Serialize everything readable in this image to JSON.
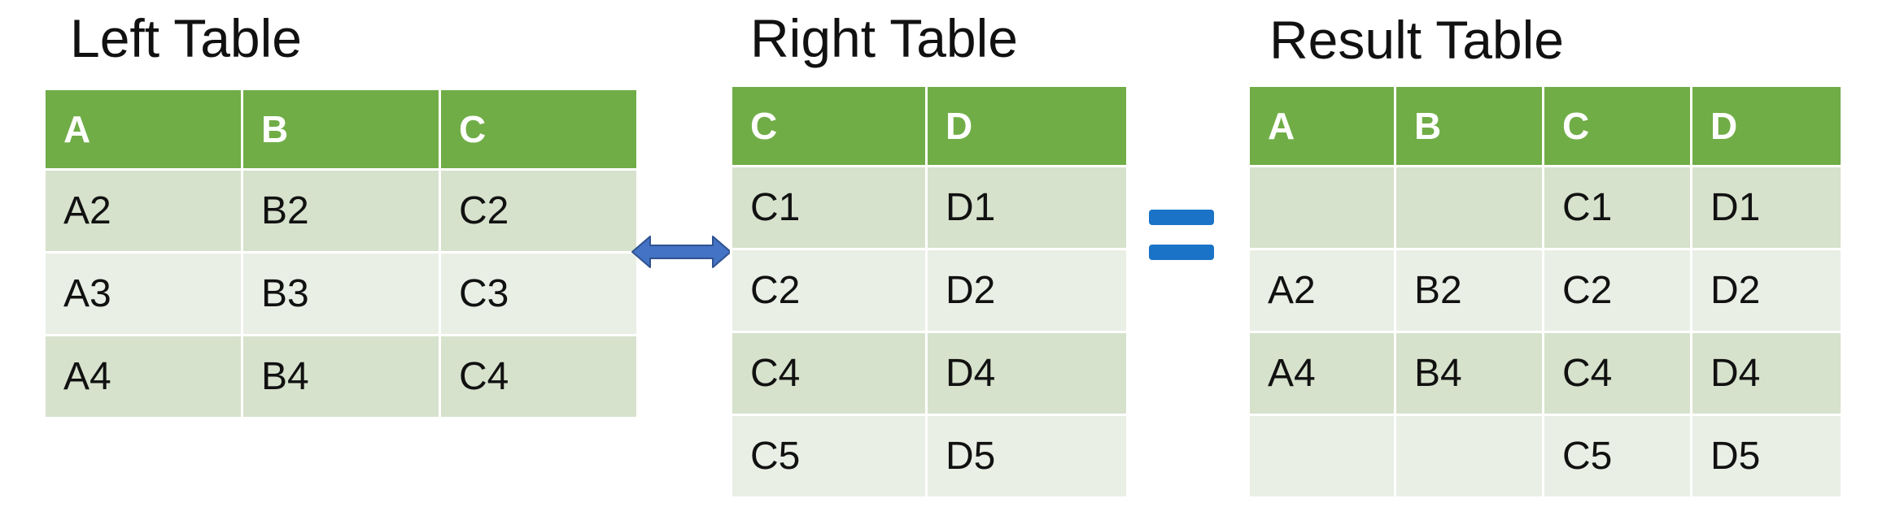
{
  "left_table": {
    "title": "Left Table",
    "columns": [
      "A",
      "B",
      "C"
    ],
    "rows": [
      [
        "A2",
        "B2",
        "C2"
      ],
      [
        "A3",
        "B3",
        "C3"
      ],
      [
        "A4",
        "B4",
        "C4"
      ]
    ]
  },
  "right_table": {
    "title": "Right Table",
    "columns": [
      "C",
      "D"
    ],
    "rows": [
      [
        "C1",
        "D1"
      ],
      [
        "C2",
        "D2"
      ],
      [
        "C4",
        "D4"
      ],
      [
        "C5",
        "D5"
      ]
    ]
  },
  "result_table": {
    "title": "Result Table",
    "columns": [
      "A",
      "B",
      "C",
      "D"
    ],
    "rows": [
      [
        "",
        "",
        "C1",
        "D1"
      ],
      [
        "A2",
        "B2",
        "C2",
        "D2"
      ],
      [
        "A4",
        "B4",
        "C4",
        "D4"
      ],
      [
        "",
        "",
        "C5",
        "D5"
      ]
    ]
  },
  "colors": {
    "header": "#70ad47",
    "row_odd": "#d6e2cc",
    "row_even": "#e9efe5",
    "arrow": "#4472c4",
    "equals": "#1a73c6"
  },
  "icons": {
    "join_arrow": "double-arrow-icon",
    "equals": "equals-icon"
  }
}
